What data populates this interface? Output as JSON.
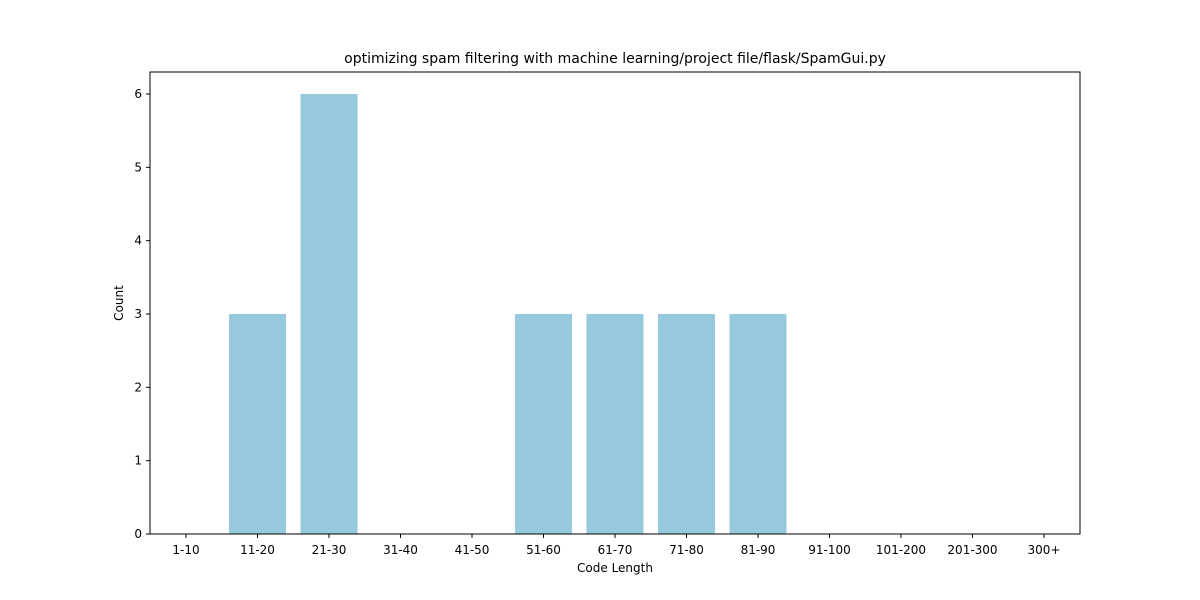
{
  "chart_data": {
    "type": "bar",
    "title": "optimizing spam filtering with machine learning/project file/flask/SpamGui.py",
    "xlabel": "Code Length",
    "ylabel": "Count",
    "categories": [
      "1-10",
      "11-20",
      "21-30",
      "31-40",
      "41-50",
      "51-60",
      "61-70",
      "71-80",
      "81-90",
      "91-100",
      "101-200",
      "201-300",
      "300+"
    ],
    "values": [
      0,
      3,
      6,
      0,
      0,
      3,
      3,
      3,
      3,
      0,
      0,
      0,
      0
    ],
    "ylim": [
      0,
      6.3
    ],
    "yticks": [
      0,
      1,
      2,
      3,
      4,
      5,
      6
    ],
    "bar_color": "#96c9dd",
    "grid": false,
    "legend": "none"
  }
}
